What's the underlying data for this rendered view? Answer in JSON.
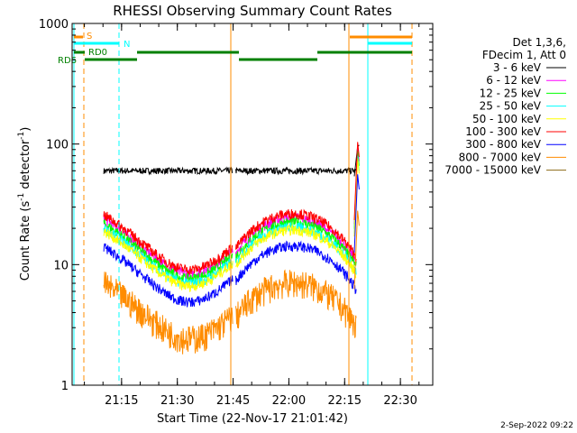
{
  "chart_data": {
    "type": "line",
    "title": "RHESSI Observing Summary Count Rates",
    "xlabel": "Start Time (22-Nov-17 21:01:42)",
    "ylabel": "Count Rate (s",
    "ylabel_sup1": "-1",
    "ylabel_mid": " detector",
    "ylabel_sup2": "-1",
    "ylabel_end": ")",
    "y_scale": "log",
    "ylim": [
      1,
      1000
    ],
    "xlim_minutes": [
      0,
      97
    ],
    "x_ticks": [
      {
        "label": "21:15",
        "minute": 13.3
      },
      {
        "label": "21:30",
        "minute": 28.3
      },
      {
        "label": "21:45",
        "minute": 43.3
      },
      {
        "label": "22:00",
        "minute": 58.3
      },
      {
        "label": "22:15",
        "minute": 73.3
      },
      {
        "label": "22:30",
        "minute": 88.3
      }
    ],
    "y_ticks": [
      {
        "label": "1",
        "value": 1
      },
      {
        "label": "10",
        "value": 10
      },
      {
        "label": "100",
        "value": 100
      },
      {
        "label": "1000",
        "value": 1000
      }
    ],
    "legend_header": [
      "Det 1,3,6,",
      "FDecim 1, Att 0"
    ],
    "series": [
      {
        "name": "3 - 6 keV",
        "color": "#000000",
        "base": 60
      },
      {
        "name": "6 - 12 keV",
        "color": "#ff00ff",
        "base": 24
      },
      {
        "name": "12 - 25 keV",
        "color": "#00ff00",
        "base": 22
      },
      {
        "name": "25 - 50 keV",
        "color": "#00ffff",
        "base": 20
      },
      {
        "name": "50 - 100 keV",
        "color": "#ffff00",
        "base": 19
      },
      {
        "name": "100 - 300 keV",
        "color": "#ff0000",
        "base": 26
      },
      {
        "name": "300 - 800 keV",
        "color": "#0000ff",
        "base": 14
      },
      {
        "name": "800 - 7000 keV",
        "color": "#ff8c00",
        "base": 7
      },
      {
        "name": "7000 - 15000 keV",
        "color": "#8b6914",
        "base": 0
      }
    ],
    "flags": [
      {
        "label": "S",
        "color": "#ff8c00"
      },
      {
        "label": "N",
        "color": "#00ffff"
      },
      {
        "label": "RD0",
        "color": "#008000"
      },
      {
        "label": "RD6",
        "color": "#008000"
      }
    ]
  },
  "timestamp": "2-Sep-2022 09:22"
}
